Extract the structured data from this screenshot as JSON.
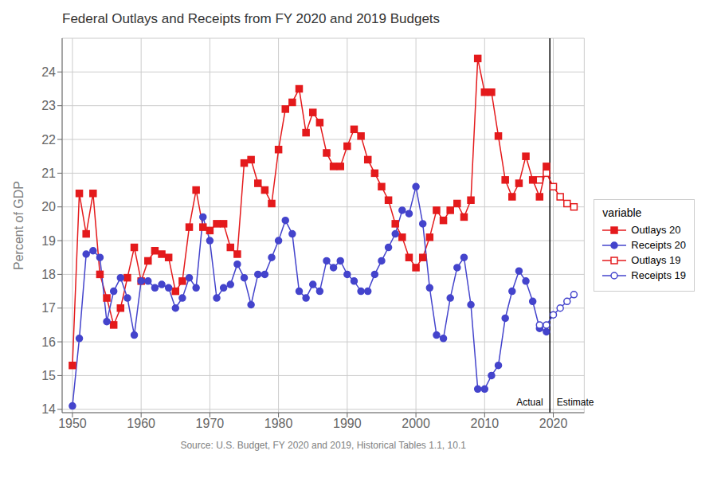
{
  "chart_data": {
    "type": "line",
    "title": "Federal Outlays and Receipts from FY 2020 and 2019 Budgets",
    "x_label": "Source: U.S. Budget, FY 2020 and 2019, Historical Tables 1.1, 10.1",
    "y_label": "Percent of GDP",
    "xlim": [
      1948.5,
      2024.5
    ],
    "ylim": [
      13.9,
      25.0
    ],
    "xticks": [
      1950,
      1960,
      1970,
      1980,
      1990,
      2000,
      2010,
      2020
    ],
    "yticks": [
      14,
      15,
      16,
      17,
      18,
      19,
      20,
      21,
      22,
      23,
      24
    ],
    "grid": true,
    "legend": "right",
    "legend_title": "variable",
    "vline_x": 2019.5,
    "annotations": [
      {
        "text": "Actual",
        "x": 2018.5,
        "y": 14.05
      },
      {
        "text": "Estimate",
        "x": 2020.5,
        "y": 14.05
      }
    ],
    "series": [
      {
        "name": "Outlays 20",
        "color": "#e41a1c",
        "marker": "square",
        "line_style": "solid",
        "x": [
          1950,
          1951,
          1952,
          1953,
          1954,
          1955,
          1956,
          1957,
          1958,
          1959,
          1960,
          1961,
          1962,
          1963,
          1964,
          1965,
          1966,
          1967,
          1968,
          1969,
          1970,
          1971,
          1972,
          1973,
          1974,
          1975,
          1976,
          1977,
          1978,
          1979,
          1980,
          1981,
          1982,
          1983,
          1984,
          1985,
          1986,
          1987,
          1988,
          1989,
          1990,
          1991,
          1992,
          1993,
          1994,
          1995,
          1996,
          1997,
          1998,
          1999,
          2000,
          2001,
          2002,
          2003,
          2004,
          2005,
          2006,
          2007,
          2008,
          2009,
          2010,
          2011,
          2012,
          2013,
          2014,
          2015,
          2016,
          2017,
          2018,
          2019
        ],
        "values": [
          15.3,
          20.4,
          19.2,
          20.4,
          18.0,
          17.3,
          16.5,
          17.0,
          17.9,
          18.8,
          17.8,
          18.4,
          18.7,
          18.6,
          18.5,
          17.5,
          17.8,
          19.4,
          20.5,
          19.4,
          19.3,
          19.5,
          19.5,
          18.8,
          18.6,
          21.3,
          21.4,
          20.7,
          20.5,
          20.1,
          21.7,
          22.9,
          23.1,
          23.5,
          22.2,
          22.8,
          22.5,
          21.6,
          21.2,
          21.2,
          21.8,
          22.3,
          22.1,
          21.4,
          21.0,
          20.6,
          20.2,
          19.5,
          19.1,
          18.5,
          18.2,
          18.5,
          19.1,
          19.9,
          19.6,
          19.9,
          20.1,
          19.7,
          20.2,
          24.4,
          23.4,
          23.4,
          22.1,
          20.8,
          20.3,
          20.7,
          21.5,
          20.8,
          20.3,
          21.2
        ]
      },
      {
        "name": "Receipts 20",
        "color": "#4444cc",
        "marker": "circle",
        "line_style": "solid",
        "x": [
          1950,
          1951,
          1952,
          1953,
          1954,
          1955,
          1956,
          1957,
          1958,
          1959,
          1960,
          1961,
          1962,
          1963,
          1964,
          1965,
          1966,
          1967,
          1968,
          1969,
          1970,
          1971,
          1972,
          1973,
          1974,
          1975,
          1976,
          1977,
          1978,
          1979,
          1980,
          1981,
          1982,
          1983,
          1984,
          1985,
          1986,
          1987,
          1988,
          1989,
          1990,
          1991,
          1992,
          1993,
          1994,
          1995,
          1996,
          1997,
          1998,
          1999,
          2000,
          2001,
          2002,
          2003,
          2004,
          2005,
          2006,
          2007,
          2008,
          2009,
          2010,
          2011,
          2012,
          2013,
          2014,
          2015,
          2016,
          2017,
          2018,
          2019
        ],
        "values": [
          14.1,
          16.1,
          18.6,
          18.7,
          18.5,
          16.6,
          17.5,
          17.9,
          17.3,
          16.2,
          17.8,
          17.8,
          17.6,
          17.7,
          17.6,
          17.0,
          17.3,
          17.9,
          17.6,
          19.7,
          19.0,
          17.3,
          17.6,
          17.7,
          18.3,
          17.9,
          17.1,
          18.0,
          18.0,
          18.5,
          19.0,
          19.6,
          19.2,
          17.5,
          17.3,
          17.7,
          17.5,
          18.4,
          18.2,
          18.4,
          18.0,
          17.8,
          17.5,
          17.5,
          18.0,
          18.4,
          18.8,
          19.2,
          19.9,
          19.8,
          20.6,
          19.5,
          17.6,
          16.2,
          16.1,
          17.3,
          18.2,
          18.5,
          17.1,
          14.6,
          14.6,
          15.0,
          15.3,
          16.7,
          17.5,
          18.1,
          17.8,
          17.2,
          16.4,
          16.3
        ]
      },
      {
        "name": "Outlays 19",
        "color": "#e41a1c",
        "marker": "open_square",
        "line_style": "solid",
        "x": [
          2018,
          2019,
          2020,
          2021,
          2022,
          2023
        ],
        "values": [
          20.8,
          21.0,
          20.6,
          20.3,
          20.1,
          20.0
        ]
      },
      {
        "name": "Receipts 19",
        "color": "#4444cc",
        "marker": "open_circle",
        "line_style": "solid",
        "x": [
          2018,
          2019,
          2020,
          2021,
          2022,
          2023
        ],
        "values": [
          16.5,
          16.5,
          16.8,
          17.0,
          17.2,
          17.4
        ]
      }
    ]
  }
}
